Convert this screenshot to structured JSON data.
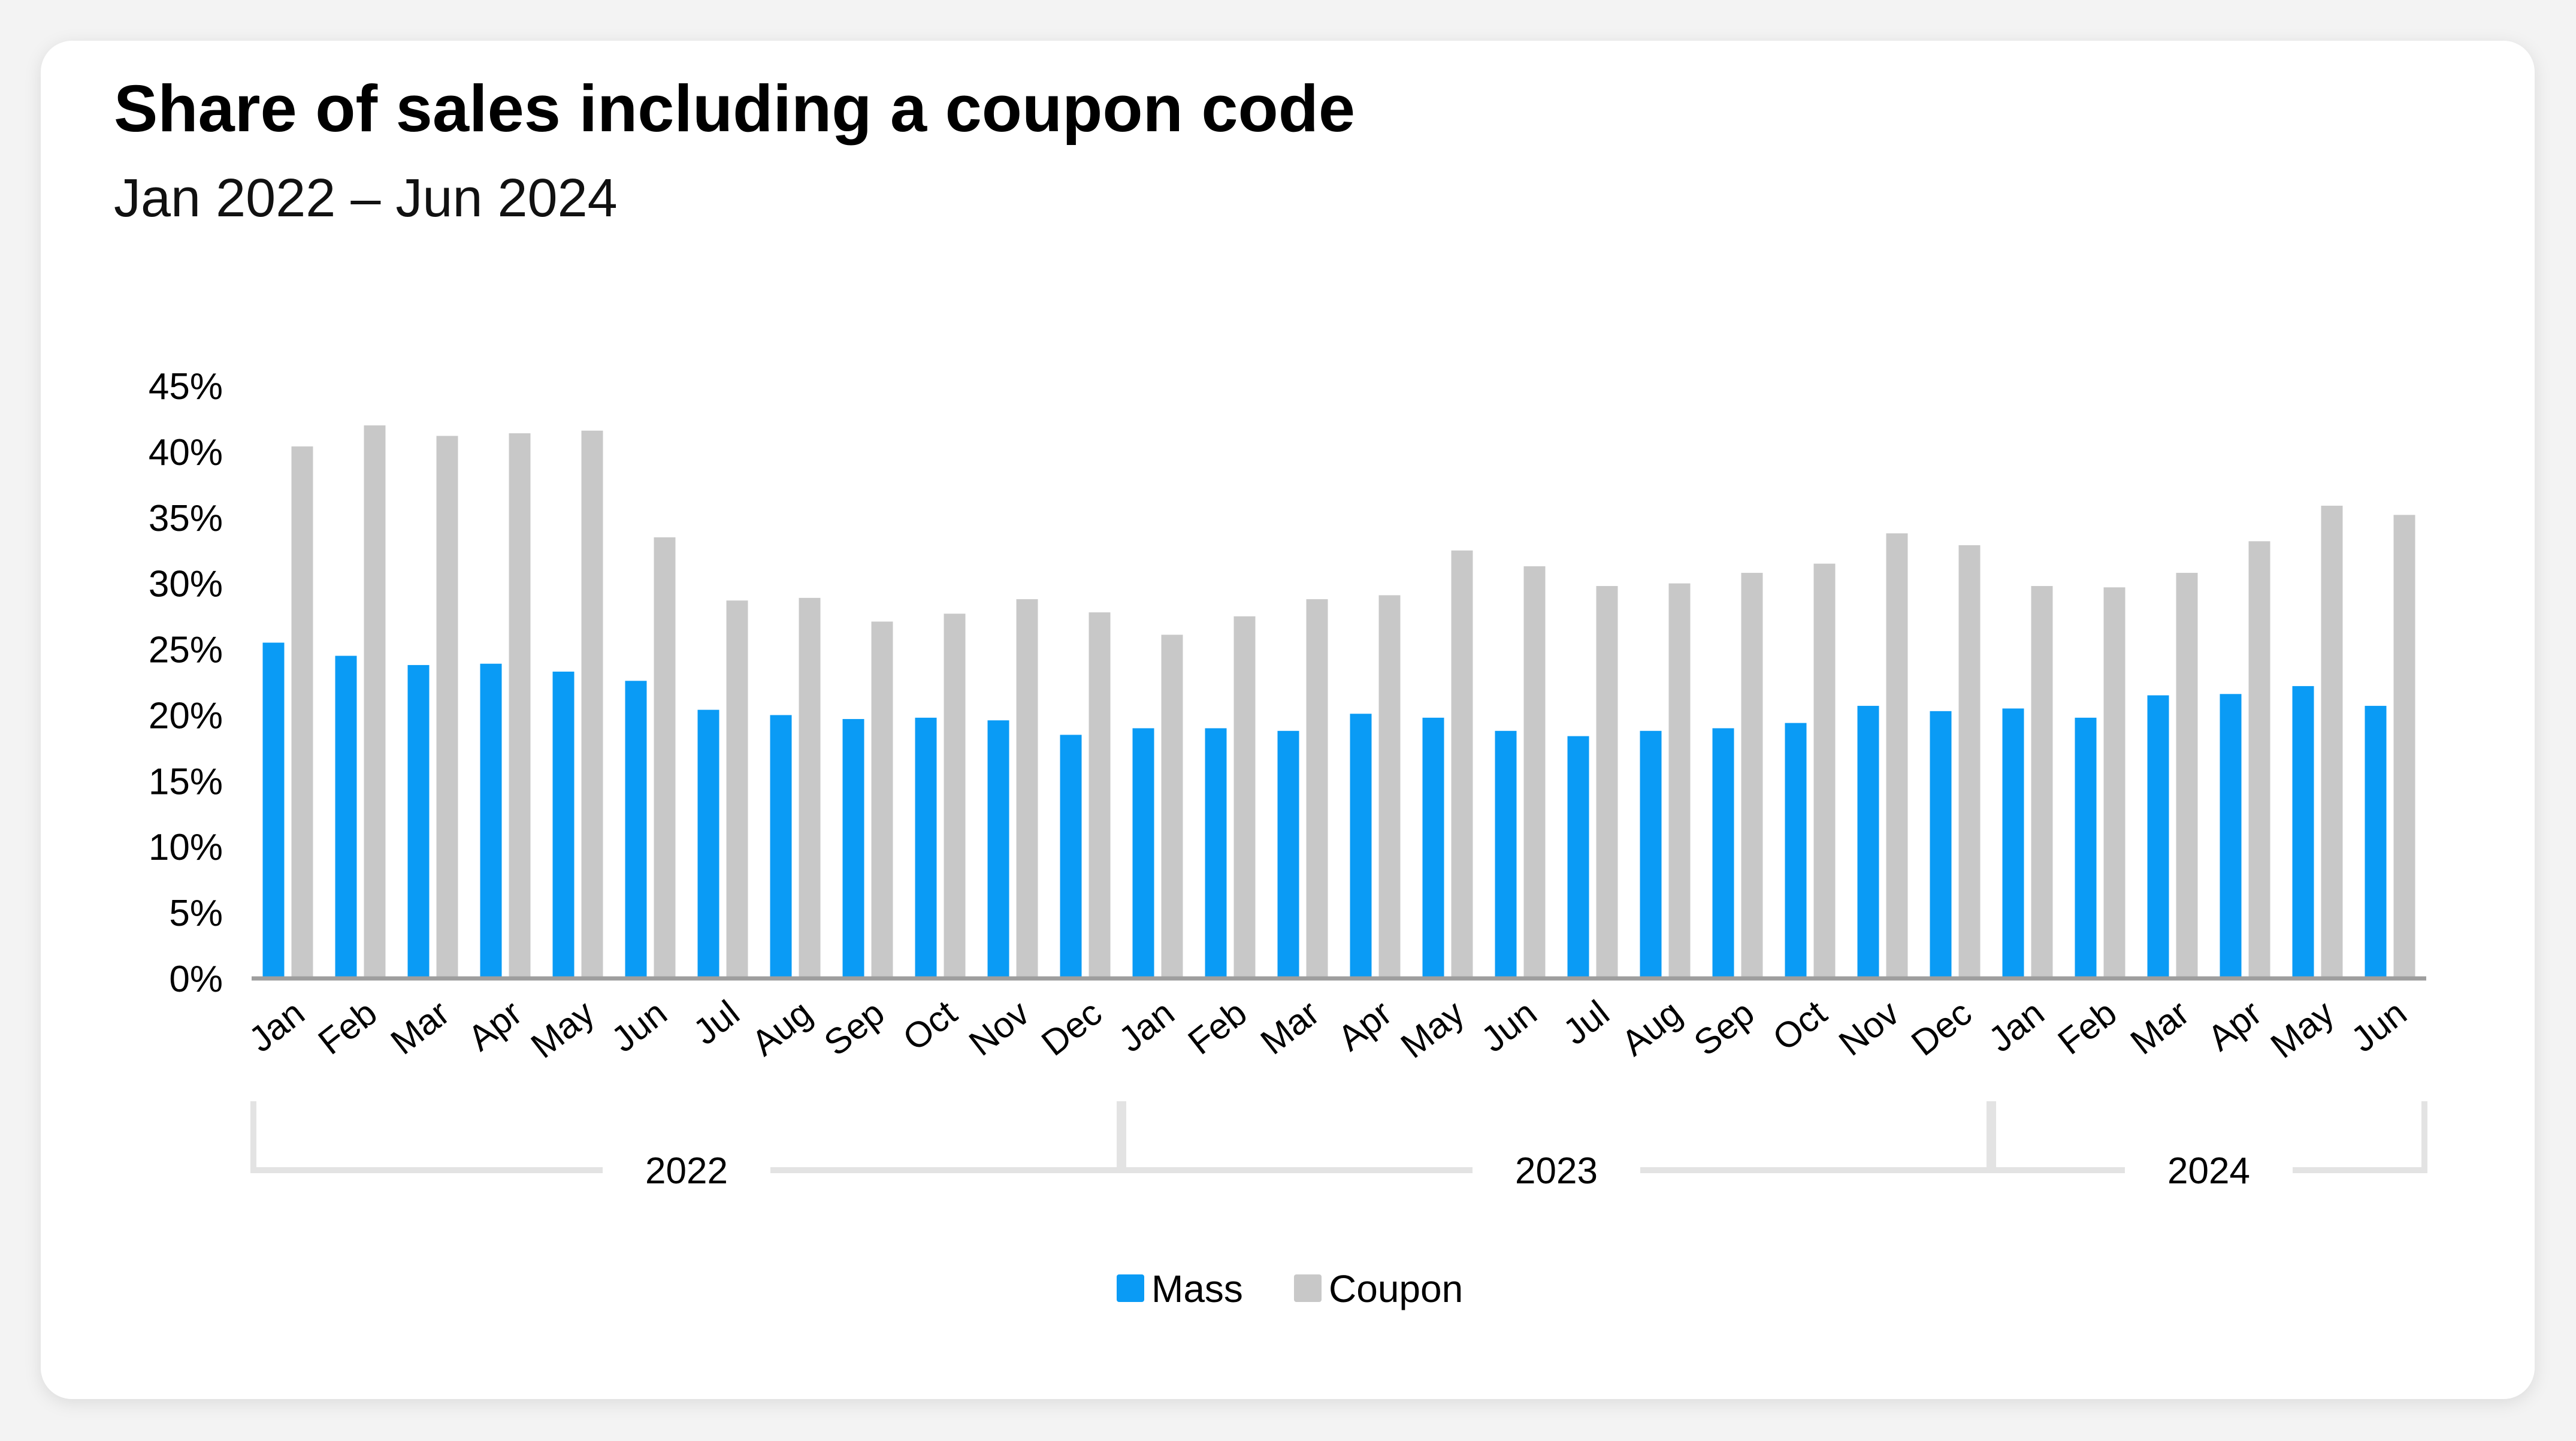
{
  "title": "Share of sales including a coupon code",
  "subtitle": "Jan 2022 – Jun 2024",
  "colors": {
    "mass": "#0a9bf5",
    "coupon": "#c8c8c8",
    "axis": "#9e9e9e",
    "bracket": "#e3e3e3"
  },
  "chart_data": {
    "type": "bar",
    "title": "Share of sales including a coupon code",
    "subtitle": "Jan 2022 – Jun 2024",
    "y_ticks": [
      "0%",
      "5%",
      "10%",
      "15%",
      "20%",
      "25%",
      "30%",
      "35%",
      "40%",
      "45%"
    ],
    "ylim": [
      0,
      45
    ],
    "grid": false,
    "legend_position": "bottom-center",
    "categories": [
      "Jan",
      "Feb",
      "Mar",
      "Apr",
      "May",
      "Jun",
      "Jul",
      "Aug",
      "Sep",
      "Oct",
      "Nov",
      "Dec",
      "Jan",
      "Feb",
      "Mar",
      "Apr",
      "May",
      "Jun",
      "Jul",
      "Aug",
      "Sep",
      "Oct",
      "Nov",
      "Dec",
      "Jan",
      "Feb",
      "Mar",
      "Apr",
      "May",
      "Jun"
    ],
    "groups": [
      {
        "label": "2022",
        "start": 0,
        "end": 11
      },
      {
        "label": "2023",
        "start": 12,
        "end": 23
      },
      {
        "label": "2024",
        "start": 24,
        "end": 29
      }
    ],
    "series": [
      {
        "name": "Mass",
        "color": "#0a9bf5",
        "values": [
          25.5,
          24.5,
          23.8,
          23.9,
          23.3,
          22.6,
          20.4,
          20.0,
          19.7,
          19.8,
          19.6,
          18.5,
          19.0,
          19.0,
          18.8,
          20.1,
          19.8,
          18.8,
          18.4,
          18.8,
          19.0,
          19.4,
          20.7,
          20.3,
          20.5,
          19.8,
          21.5,
          21.6,
          22.2,
          20.7
        ]
      },
      {
        "name": "Coupon",
        "color": "#c8c8c8",
        "values": [
          40.4,
          42.0,
          41.2,
          41.4,
          41.6,
          33.5,
          28.7,
          28.9,
          27.1,
          27.7,
          28.8,
          27.8,
          26.1,
          27.5,
          28.8,
          29.1,
          32.5,
          31.3,
          29.8,
          30.0,
          30.8,
          31.5,
          33.8,
          32.9,
          29.8,
          29.7,
          30.8,
          33.2,
          35.9,
          35.2
        ]
      }
    ]
  }
}
